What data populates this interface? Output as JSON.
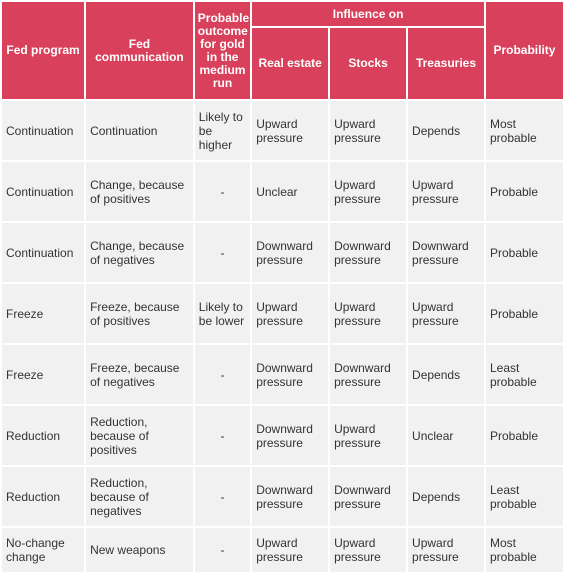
{
  "header": {
    "fed_program": "Fed program",
    "fed_communication": "Fed communication",
    "gold_outcome": "Probable outcome for gold in the medium run",
    "influence_on": "Influence on",
    "real_estate": "Real estate",
    "stocks": "Stocks",
    "treasuries": "Treasuries",
    "probability": "Probability"
  },
  "rows": [
    {
      "program": "Continuation",
      "communication": "Continuation",
      "gold": "Likely to be higher",
      "real_estate": "Upward pressure",
      "stocks": "Upward pressure",
      "treasuries": "Depends",
      "probability": "Most probable"
    },
    {
      "program": "Continuation",
      "communication": "Change, because of positives",
      "gold": "-",
      "real_estate": "Unclear",
      "stocks": "Upward pressure",
      "treasuries": "Upward pressure",
      "probability": "Probable"
    },
    {
      "program": "Continuation",
      "communication": "Change, because of negatives",
      "gold": "-",
      "real_estate": "Downward pressure",
      "stocks": "Downward pressure",
      "treasuries": "Downward pressure",
      "probability": "Probable"
    },
    {
      "program": "Freeze",
      "communication": "Freeze, because of positives",
      "gold": "Likely to be lower",
      "real_estate": "Upward pressure",
      "stocks": "Upward pressure",
      "treasuries": "Upward pressure",
      "probability": "Probable"
    },
    {
      "program": "Freeze",
      "communication": "Freeze, because of negatives",
      "gold": "-",
      "real_estate": "Downward pressure",
      "stocks": "Downward pressure",
      "treasuries": "Depends",
      "probability": "Least probable"
    },
    {
      "program": "Reduction",
      "communication": "Reduction, because of positives",
      "gold": "-",
      "real_estate": "Downward pressure",
      "stocks": "Upward pressure",
      "treasuries": "Unclear",
      "probability": "Probable"
    },
    {
      "program": "Reduction",
      "communication": "Reduction, because of negatives",
      "gold": "-",
      "real_estate": "Downward pressure",
      "stocks": "Downward pressure",
      "treasuries": "Depends",
      "probability": "Least probable"
    },
    {
      "program": "No-change change",
      "communication": "New weapons",
      "gold": "-",
      "real_estate": "Upward pressure",
      "stocks": "Upward pressure",
      "treasuries": "Upward pressure",
      "probability": "Most probable"
    }
  ],
  "colors": {
    "header_bg": "#d9405b",
    "cell_bg": "#f1f1f1",
    "text": "#333333"
  }
}
